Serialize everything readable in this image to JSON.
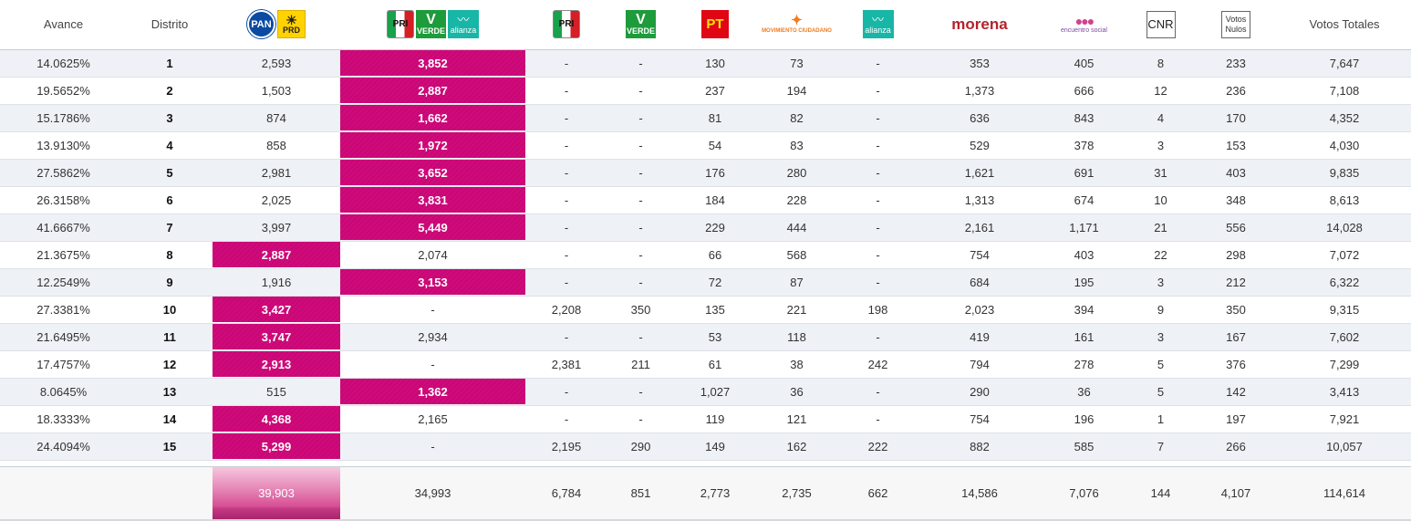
{
  "headers": {
    "avance": "Avance",
    "distrito": "Distrito",
    "votos_totales": "Votos Totales"
  },
  "logos": {
    "pan": "PAN",
    "prd": "PRD",
    "pri": "PRI",
    "verde": "VERDE",
    "alianza": "alianza",
    "pt": "PT",
    "movimiento": "MOVIMIENTO CIUDADANO",
    "morena": "morena",
    "encuentro": "encuentro social",
    "cnr": "CNR",
    "votos": "Votos",
    "nulos": "Nulos"
  },
  "icons": {
    "pan": "pan-logo-icon",
    "prd": "prd-sun-icon",
    "pri": "pri-logo-icon",
    "verde": "verde-toucan-icon",
    "alianza": "nueva-alianza-icon",
    "pt": "pt-logo-icon",
    "movimiento": "movimiento-ciudadano-eagle-icon",
    "encuentro": "encuentro-social-icon"
  },
  "colors": {
    "winner": "#d10a7c",
    "row_alt": "#eef1f6",
    "morena": "#b3232c",
    "pan": "#0b4aa2",
    "prd": "#ffd200",
    "verde": "#1e9b3b",
    "alianza": "#18b6a6",
    "pt": "#e10613"
  },
  "rows": [
    {
      "avance": "14.0625%",
      "distrito": "1",
      "pan_prd": "2,593",
      "pri_verde_alianza": "3,852",
      "pri": "-",
      "verde": "-",
      "pt": "130",
      "mc": "73",
      "alianza": "-",
      "morena": "353",
      "es": "405",
      "cnr": "8",
      "nulos": "233",
      "total": "7,647",
      "winner": "pri_verde_alianza"
    },
    {
      "avance": "19.5652%",
      "distrito": "2",
      "pan_prd": "1,503",
      "pri_verde_alianza": "2,887",
      "pri": "-",
      "verde": "-",
      "pt": "237",
      "mc": "194",
      "alianza": "-",
      "morena": "1,373",
      "es": "666",
      "cnr": "12",
      "nulos": "236",
      "total": "7,108",
      "winner": "pri_verde_alianza"
    },
    {
      "avance": "15.1786%",
      "distrito": "3",
      "pan_prd": "874",
      "pri_verde_alianza": "1,662",
      "pri": "-",
      "verde": "-",
      "pt": "81",
      "mc": "82",
      "alianza": "-",
      "morena": "636",
      "es": "843",
      "cnr": "4",
      "nulos": "170",
      "total": "4,352",
      "winner": "pri_verde_alianza"
    },
    {
      "avance": "13.9130%",
      "distrito": "4",
      "pan_prd": "858",
      "pri_verde_alianza": "1,972",
      "pri": "-",
      "verde": "-",
      "pt": "54",
      "mc": "83",
      "alianza": "-",
      "morena": "529",
      "es": "378",
      "cnr": "3",
      "nulos": "153",
      "total": "4,030",
      "winner": "pri_verde_alianza"
    },
    {
      "avance": "27.5862%",
      "distrito": "5",
      "pan_prd": "2,981",
      "pri_verde_alianza": "3,652",
      "pri": "-",
      "verde": "-",
      "pt": "176",
      "mc": "280",
      "alianza": "-",
      "morena": "1,621",
      "es": "691",
      "cnr": "31",
      "nulos": "403",
      "total": "9,835",
      "winner": "pri_verde_alianza"
    },
    {
      "avance": "26.3158%",
      "distrito": "6",
      "pan_prd": "2,025",
      "pri_verde_alianza": "3,831",
      "pri": "-",
      "verde": "-",
      "pt": "184",
      "mc": "228",
      "alianza": "-",
      "morena": "1,313",
      "es": "674",
      "cnr": "10",
      "nulos": "348",
      "total": "8,613",
      "winner": "pri_verde_alianza"
    },
    {
      "avance": "41.6667%",
      "distrito": "7",
      "pan_prd": "3,997",
      "pri_verde_alianza": "5,449",
      "pri": "-",
      "verde": "-",
      "pt": "229",
      "mc": "444",
      "alianza": "-",
      "morena": "2,161",
      "es": "1,171",
      "cnr": "21",
      "nulos": "556",
      "total": "14,028",
      "winner": "pri_verde_alianza"
    },
    {
      "avance": "21.3675%",
      "distrito": "8",
      "pan_prd": "2,887",
      "pri_verde_alianza": "2,074",
      "pri": "-",
      "verde": "-",
      "pt": "66",
      "mc": "568",
      "alianza": "-",
      "morena": "754",
      "es": "403",
      "cnr": "22",
      "nulos": "298",
      "total": "7,072",
      "winner": "pan_prd"
    },
    {
      "avance": "12.2549%",
      "distrito": "9",
      "pan_prd": "1,916",
      "pri_verde_alianza": "3,153",
      "pri": "-",
      "verde": "-",
      "pt": "72",
      "mc": "87",
      "alianza": "-",
      "morena": "684",
      "es": "195",
      "cnr": "3",
      "nulos": "212",
      "total": "6,322",
      "winner": "pri_verde_alianza"
    },
    {
      "avance": "27.3381%",
      "distrito": "10",
      "pan_prd": "3,427",
      "pri_verde_alianza": "-",
      "pri": "2,208",
      "verde": "350",
      "pt": "135",
      "mc": "221",
      "alianza": "198",
      "morena": "2,023",
      "es": "394",
      "cnr": "9",
      "nulos": "350",
      "total": "9,315",
      "winner": "pan_prd"
    },
    {
      "avance": "21.6495%",
      "distrito": "11",
      "pan_prd": "3,747",
      "pri_verde_alianza": "2,934",
      "pri": "-",
      "verde": "-",
      "pt": "53",
      "mc": "118",
      "alianza": "-",
      "morena": "419",
      "es": "161",
      "cnr": "3",
      "nulos": "167",
      "total": "7,602",
      "winner": "pan_prd"
    },
    {
      "avance": "17.4757%",
      "distrito": "12",
      "pan_prd": "2,913",
      "pri_verde_alianza": "-",
      "pri": "2,381",
      "verde": "211",
      "pt": "61",
      "mc": "38",
      "alianza": "242",
      "morena": "794",
      "es": "278",
      "cnr": "5",
      "nulos": "376",
      "total": "7,299",
      "winner": "pan_prd"
    },
    {
      "avance": "8.0645%",
      "distrito": "13",
      "pan_prd": "515",
      "pri_verde_alianza": "1,362",
      "pri": "-",
      "verde": "-",
      "pt": "1,027",
      "mc": "36",
      "alianza": "-",
      "morena": "290",
      "es": "36",
      "cnr": "5",
      "nulos": "142",
      "total": "3,413",
      "winner": "pri_verde_alianza"
    },
    {
      "avance": "18.3333%",
      "distrito": "14",
      "pan_prd": "4,368",
      "pri_verde_alianza": "2,165",
      "pri": "-",
      "verde": "-",
      "pt": "119",
      "mc": "121",
      "alianza": "-",
      "morena": "754",
      "es": "196",
      "cnr": "1",
      "nulos": "197",
      "total": "7,921",
      "winner": "pan_prd"
    },
    {
      "avance": "24.4094%",
      "distrito": "15",
      "pan_prd": "5,299",
      "pri_verde_alianza": "-",
      "pri": "2,195",
      "verde": "290",
      "pt": "149",
      "mc": "162",
      "alianza": "222",
      "morena": "882",
      "es": "585",
      "cnr": "7",
      "nulos": "266",
      "total": "10,057",
      "winner": "pan_prd"
    }
  ],
  "totals": {
    "pan_prd": "39,903",
    "pri_verde_alianza": "34,993",
    "pri": "6,784",
    "verde": "851",
    "pt": "2,773",
    "mc": "2,735",
    "alianza": "662",
    "morena": "14,586",
    "es": "7,076",
    "cnr": "144",
    "nulos": "4,107",
    "total": "114,614"
  }
}
